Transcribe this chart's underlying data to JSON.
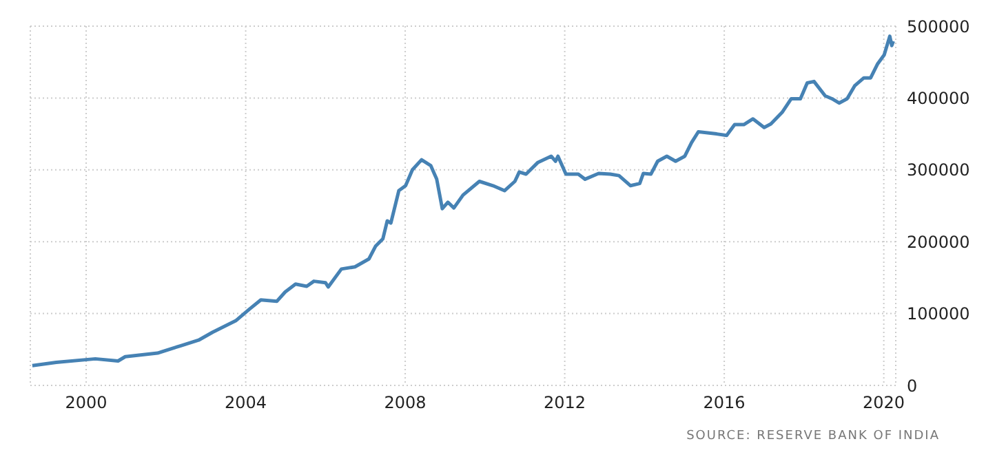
{
  "chart_data": {
    "type": "line",
    "x": [
      1998.65,
      1999.25,
      2000.23,
      2000.8,
      2000.98,
      2001.79,
      2002.36,
      2002.82,
      2003.17,
      2003.75,
      2004.09,
      2004.38,
      2004.78,
      2004.99,
      2005.25,
      2005.53,
      2005.71,
      2006.0,
      2006.07,
      2006.4,
      2006.74,
      2007.09,
      2007.26,
      2007.44,
      2007.55,
      2007.64,
      2007.84,
      2008.01,
      2008.18,
      2008.41,
      2008.64,
      2008.79,
      2008.93,
      2009.07,
      2009.22,
      2009.45,
      2009.86,
      2010.2,
      2010.49,
      2010.75,
      2010.86,
      2011.03,
      2011.32,
      2011.66,
      2011.77,
      2011.83,
      2012.03,
      2012.34,
      2012.51,
      2012.85,
      2013.14,
      2013.36,
      2013.65,
      2013.88,
      2013.97,
      2014.16,
      2014.33,
      2014.56,
      2014.78,
      2015.01,
      2015.18,
      2015.35,
      2015.81,
      2016.06,
      2016.26,
      2016.49,
      2016.72,
      2017.0,
      2017.17,
      2017.45,
      2017.68,
      2017.91,
      2018.08,
      2018.25,
      2018.53,
      2018.7,
      2018.88,
      2019.08,
      2019.27,
      2019.5,
      2019.67,
      2019.84,
      2020.01,
      2020.15,
      2020.2,
      2020.24
    ],
    "series": [
      {
        "color": "#4682b4",
        "values": [
          27600,
          32000,
          37000,
          34000,
          40000,
          45000,
          55000,
          63000,
          74000,
          90000,
          106000,
          119000,
          117000,
          130000,
          141000,
          138000,
          145000,
          143000,
          137000,
          162000,
          165000,
          176000,
          194000,
          204000,
          229000,
          226000,
          271000,
          278000,
          300000,
          314000,
          306000,
          287000,
          246000,
          255000,
          247000,
          265000,
          284000,
          278000,
          271000,
          284000,
          297000,
          294000,
          310000,
          319000,
          312000,
          319000,
          294000,
          294000,
          287000,
          295000,
          294000,
          292000,
          278000,
          281000,
          295000,
          294000,
          312000,
          319000,
          312000,
          319000,
          338000,
          353000,
          350000,
          348000,
          363000,
          363000,
          371000,
          359000,
          364000,
          380000,
          399000,
          399000,
          421000,
          423000,
          403000,
          399000,
          393000,
          399000,
          417000,
          428000,
          428000,
          447000,
          460000,
          486000,
          473000,
          479000
        ]
      }
    ],
    "xlim": [
      1998.6,
      2020.3
    ],
    "xticks": [
      {
        "value": 2000,
        "label": "2000"
      },
      {
        "value": 2004,
        "label": "2004"
      },
      {
        "value": 2008,
        "label": "2008"
      },
      {
        "value": 2012,
        "label": "2012"
      },
      {
        "value": 2016,
        "label": "2016"
      },
      {
        "value": 2020,
        "label": "2020"
      }
    ],
    "ylim": [
      0,
      500000
    ],
    "yticks": [
      0,
      100000,
      200000,
      300000,
      400000,
      500000
    ],
    "grid": true,
    "marker": "none",
    "line_style": "solid",
    "annotations": [
      "SOURCE: RESERVE BANK OF INDIA"
    ]
  }
}
